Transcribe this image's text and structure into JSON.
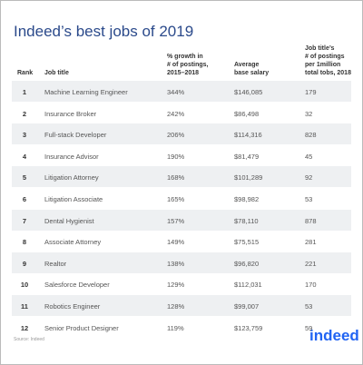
{
  "header": {
    "title": "Indeed’s best jobs of 2019"
  },
  "table": {
    "columns": [
      "Rank",
      "Job title",
      "% growth in\n# of postings,\n2015–2018",
      "Average\nbase salary",
      "Job title’s\n# of postings\nper 1million\ntotal tobs, 2018"
    ],
    "rows": [
      [
        "1",
        "Machine Learning Engineer",
        "344%",
        "$146,085",
        "179"
      ],
      [
        "2",
        "Insurance Broker",
        "242%",
        "$86,498",
        "32"
      ],
      [
        "3",
        "Full-stack Developer",
        "206%",
        "$114,316",
        "828"
      ],
      [
        "4",
        "Insurance Advisor",
        "190%",
        "$81,479",
        "45"
      ],
      [
        "5",
        "Litigation Attorney",
        "168%",
        "$101,289",
        "92"
      ],
      [
        "6",
        "Litigation Associate",
        "165%",
        "$98,982",
        "53"
      ],
      [
        "7",
        "Dental Hygienist",
        "157%",
        "$78,110",
        "878"
      ],
      [
        "8",
        "Associate Attorney",
        "149%",
        "$75,515",
        "281"
      ],
      [
        "9",
        "Realtor",
        "138%",
        "$96,820",
        "221"
      ],
      [
        "10",
        "Salesforce Developer",
        "129%",
        "$112,031",
        "170"
      ],
      [
        "11",
        "Robotics Engineer",
        "128%",
        "$99,007",
        "53"
      ],
      [
        "12",
        "Senior Product Designer",
        "119%",
        "$123,759",
        "59"
      ]
    ]
  },
  "footer": {
    "source": "Source: Indeed",
    "logo": "indeed"
  }
}
